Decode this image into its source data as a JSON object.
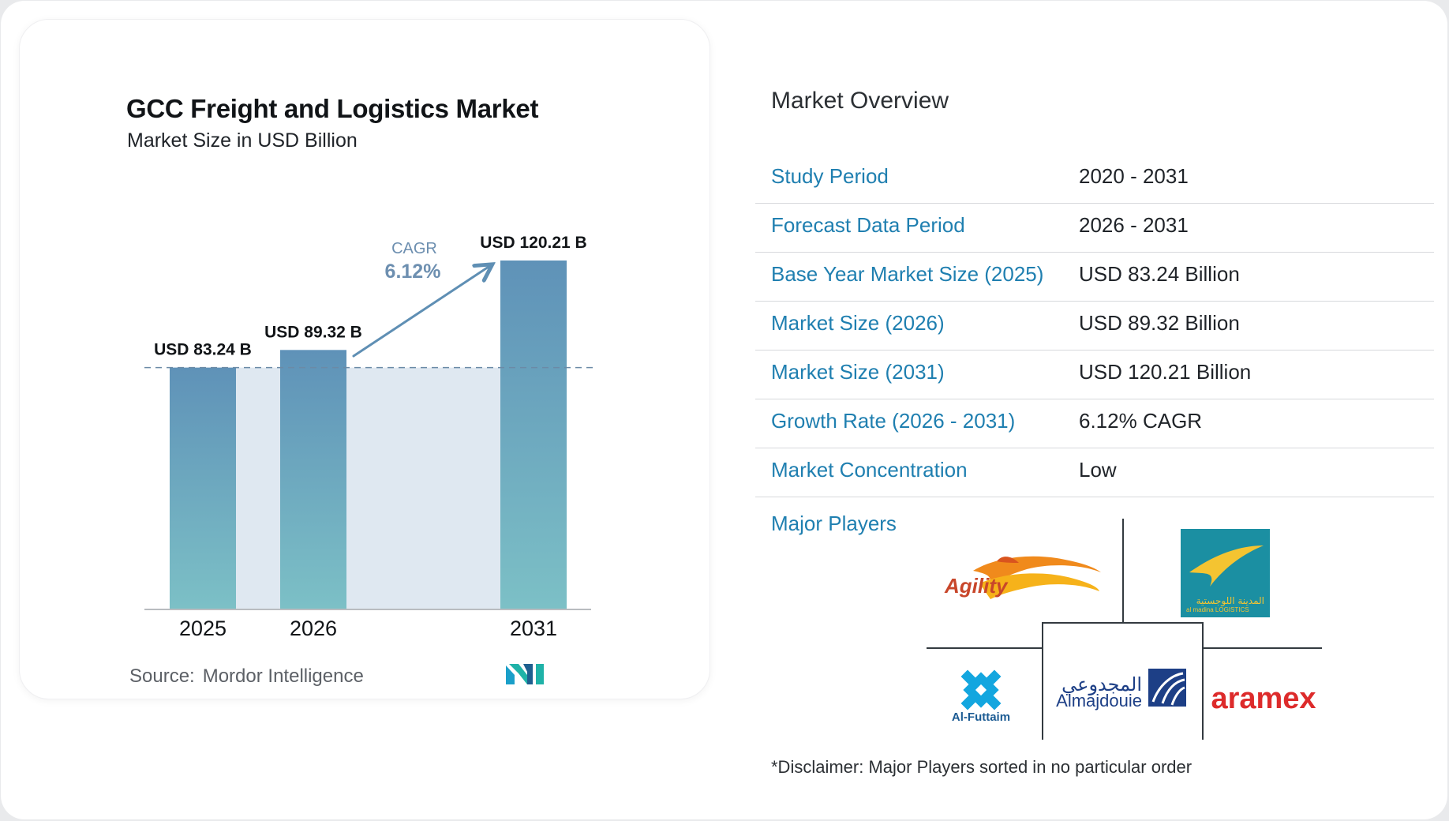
{
  "chart_data": {
    "type": "bar",
    "title": "GCC Freight and Logistics Market",
    "subtitle": "Market Size in USD Billion",
    "categories": [
      "2025",
      "2026",
      "2031"
    ],
    "values": [
      83.24,
      89.32,
      120.21
    ],
    "data_labels": [
      "USD 83.24 B",
      "USD 89.32 B",
      "USD 120.21 B"
    ],
    "ylim": [
      0,
      120.21
    ],
    "grid": false,
    "baseline_reference_value": 83.24,
    "annotation": {
      "label": "CAGR",
      "value": "6.12%"
    },
    "colors": {
      "bar_top": "#5f92b8",
      "bar_bottom": "#7cc0c6",
      "band": "#dfe8f1",
      "arrow": "#5f8fb4",
      "cagr_text": "#6d8fb0"
    }
  },
  "source": {
    "label": "Source:",
    "name": "Mordor Intelligence"
  },
  "overview": {
    "title": "Market Overview",
    "rows": [
      {
        "label": "Study Period",
        "value": "2020 - 2031"
      },
      {
        "label": "Forecast Data Period",
        "value": "2026 - 2031"
      },
      {
        "label": "Base Year Market Size (2025)",
        "value": "USD 83.24 Billion"
      },
      {
        "label": "Market Size (2026)",
        "value": "USD 89.32 Billion"
      },
      {
        "label": "Market Size (2031)",
        "value": "USD 120.21 Billion"
      },
      {
        "label": "Growth Rate (2026 - 2031)",
        "value": "6.12% CAGR"
      },
      {
        "label": "Market Concentration",
        "value": "Low"
      }
    ]
  },
  "players": {
    "label": "Major Players",
    "logos": [
      {
        "name": "agility-logo",
        "text": "Agility"
      },
      {
        "name": "almadina-logistics-logo",
        "text": "al madina LOGISTICS",
        "text_ar": "المدينة اللوجستية"
      },
      {
        "name": "al-futtaim-logo",
        "text": "Al-Futtaim"
      },
      {
        "name": "almajdouie-logo",
        "text": "Almajdouie",
        "text_ar": "المجدوعي"
      },
      {
        "name": "aramex-logo",
        "text": "aramex"
      }
    ]
  },
  "disclaimer": "*Disclaimer: Major Players sorted in no particular order",
  "colors": {
    "accent": "#1f7fb0",
    "divider": "#d7d9dc"
  }
}
